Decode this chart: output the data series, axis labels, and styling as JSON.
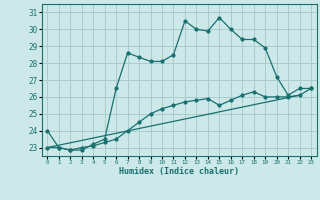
{
  "xlabel": "Humidex (Indice chaleur)",
  "xlim": [
    -0.5,
    23.5
  ],
  "ylim": [
    22.5,
    31.5
  ],
  "yticks": [
    23,
    24,
    25,
    26,
    27,
    28,
    29,
    30,
    31
  ],
  "xticks": [
    0,
    1,
    2,
    3,
    4,
    5,
    6,
    7,
    8,
    9,
    10,
    11,
    12,
    13,
    14,
    15,
    16,
    17,
    18,
    19,
    20,
    21,
    22,
    23
  ],
  "bg_color": "#cce8e8",
  "grid_color": "#aacccc",
  "line_color": "#1a7070",
  "line1_x": [
    0,
    1,
    2,
    3,
    4,
    5,
    6,
    7,
    8,
    9,
    10,
    11,
    12,
    13,
    14,
    15,
    16,
    17,
    18,
    19,
    20,
    21,
    22,
    23
  ],
  "line1_y": [
    24.0,
    23.0,
    22.85,
    22.85,
    23.2,
    23.5,
    26.5,
    28.6,
    28.35,
    28.1,
    28.1,
    28.5,
    30.5,
    30.0,
    29.9,
    30.7,
    30.0,
    29.4,
    29.4,
    28.9,
    27.2,
    26.1,
    26.5,
    26.5
  ],
  "line2_x": [
    0,
    1,
    2,
    3,
    4,
    5,
    6,
    7,
    8,
    9,
    10,
    11,
    12,
    13,
    14,
    15,
    16,
    17,
    18,
    19,
    20,
    21,
    22,
    23
  ],
  "line2_y": [
    23.0,
    23.0,
    22.85,
    23.0,
    23.1,
    23.3,
    23.5,
    24.0,
    24.5,
    25.0,
    25.3,
    25.5,
    25.7,
    25.8,
    25.9,
    25.5,
    25.8,
    26.1,
    26.3,
    26.0,
    26.0,
    26.0,
    26.1,
    26.5
  ],
  "line3_x": [
    0,
    22
  ],
  "line3_y": [
    23.0,
    26.1
  ]
}
